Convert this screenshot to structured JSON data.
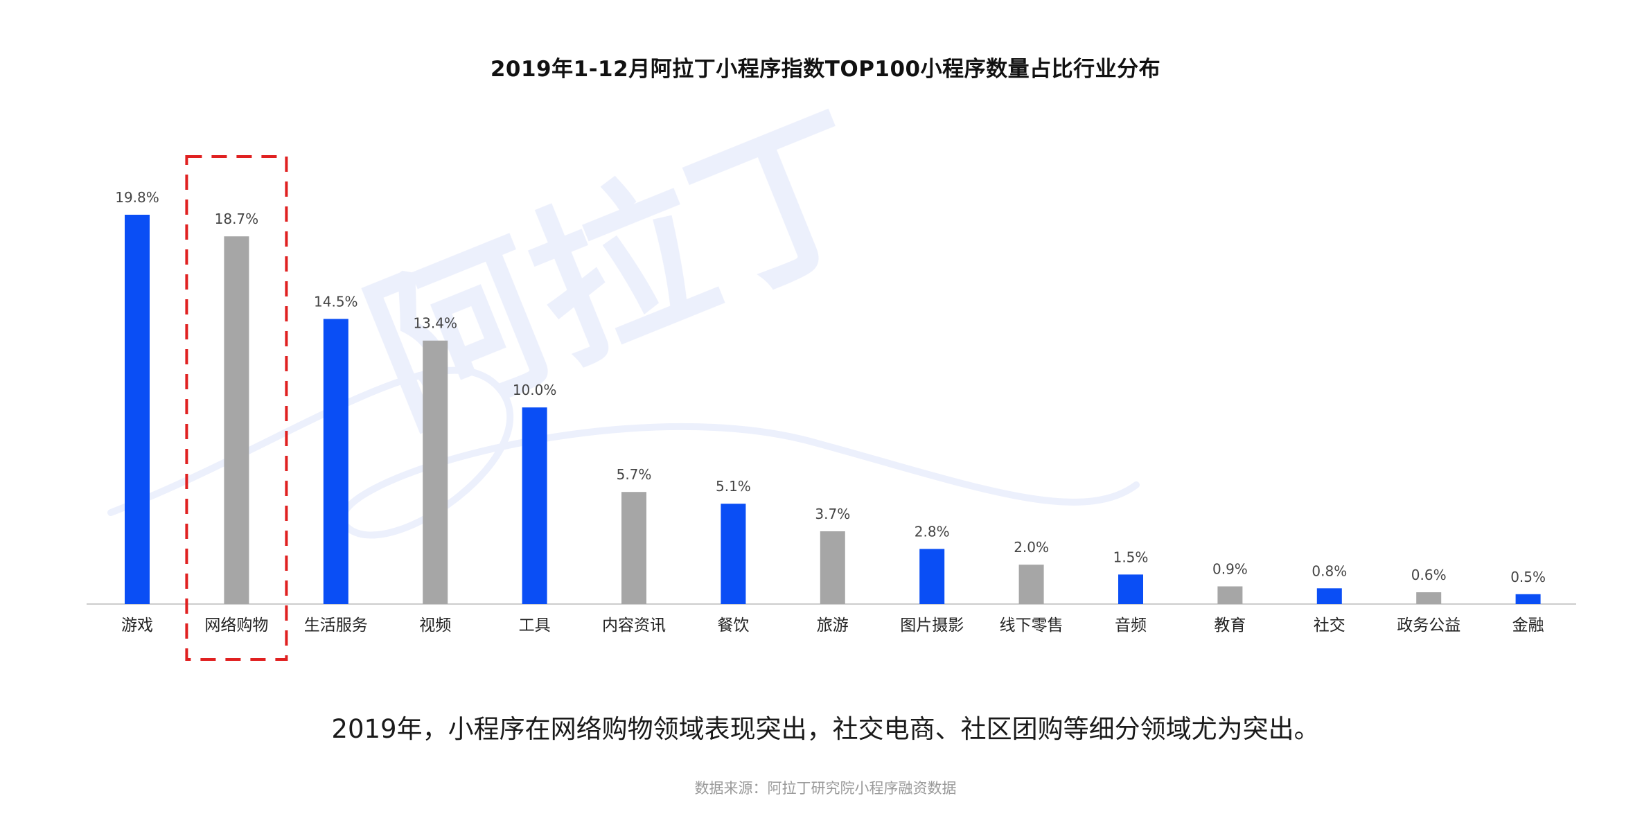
{
  "chart_data": {
    "type": "bar",
    "title": "2019年1-12月阿拉丁小程序指数TOP100小程序数量占比行业分布",
    "xlabel": "",
    "ylabel": "",
    "ylim": [
      0,
      20
    ],
    "grid": false,
    "legend": "none",
    "categories": [
      "游戏",
      "网络购物",
      "生活服务",
      "视频",
      "工具",
      "内容资讯",
      "餐饮",
      "旅游",
      "图片摄影",
      "线下零售",
      "音频",
      "教育",
      "社交",
      "政务公益",
      "金融"
    ],
    "values": [
      19.8,
      18.7,
      14.5,
      13.4,
      10.0,
      5.7,
      5.1,
      3.7,
      2.8,
      2.0,
      1.5,
      0.9,
      0.8,
      0.6,
      0.5
    ],
    "value_labels": [
      "19.8%",
      "18.7%",
      "14.5%",
      "13.4%",
      "10.0%",
      "5.7%",
      "5.1%",
      "3.7%",
      "2.8%",
      "2.0%",
      "1.5%",
      "0.9%",
      "0.8%",
      "0.6%",
      "0.5%"
    ],
    "highlight_category": "网络购物",
    "colors": {
      "primary": "#0a4ef5",
      "secondary": "#a6a6a6",
      "highlight_box": "#e02020",
      "axis": "#cccccc"
    }
  },
  "caption": "2019年，小程序在网络购物领域表现突出，社交电商、社区团购等细分领域尤为突出。",
  "source": "数据来源：阿拉丁研究院小程序融资数据",
  "watermark": "阿拉丁"
}
